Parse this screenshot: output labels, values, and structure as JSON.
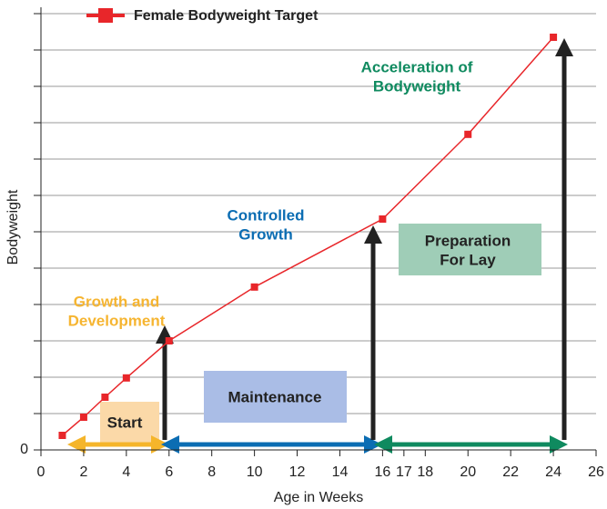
{
  "chart_data": {
    "type": "line",
    "x": [
      1,
      2,
      3,
      4,
      6,
      10,
      16,
      20,
      24
    ],
    "series": [
      {
        "name": "Female Bodyweight Target",
        "color": "#e8262a",
        "values": [
          0.4,
          0.9,
          1.45,
          1.98,
          3.0,
          4.48,
          6.35,
          8.68,
          11.35
        ]
      }
    ],
    "xlabel": "Age in Weeks",
    "ylabel": "Bodyweight",
    "xlim": [
      0,
      26
    ],
    "xticks": [
      0,
      2,
      4,
      6,
      8,
      10,
      12,
      14,
      16,
      17,
      18,
      20,
      22,
      24,
      26
    ],
    "ylim": [
      0,
      12
    ],
    "yticks": [
      0
    ],
    "yminor_ticks": [
      1,
      2,
      3,
      4,
      5,
      6,
      7,
      8,
      9,
      10,
      11,
      12
    ],
    "grid": true,
    "legend": "top",
    "annotations": [
      {
        "lines": [
          "Growth and",
          "Development"
        ]
      },
      {
        "lines": [
          "Controlled",
          "Growth"
        ]
      },
      {
        "lines": [
          "Acceleration of",
          "Bodyweight"
        ]
      },
      {
        "lines": [
          "Start"
        ]
      },
      {
        "lines": [
          "Maintenance"
        ]
      },
      {
        "lines": [
          "Preparation",
          "For Lay"
        ]
      }
    ]
  }
}
